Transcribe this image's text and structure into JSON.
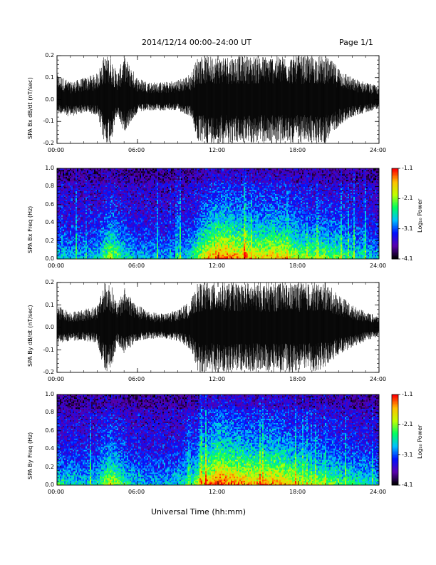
{
  "header": {
    "title": "2014/12/14   00:00–24:00 UT",
    "page": "Page 1/1"
  },
  "xlabel": "Universal Time (hh:mm)",
  "chart_data": [
    {
      "type": "line",
      "ylabel": "SPA Bx dB/dt (nT/sec)",
      "ylim": [
        -0.2,
        0.2
      ],
      "yticks": [
        "-0.2",
        "-0.1",
        "0.0",
        "0.1",
        "0.2"
      ],
      "xticks": [
        "00:00",
        "06:00",
        "12:00",
        "18:00",
        "24:00"
      ],
      "xlim": [
        0,
        24
      ],
      "series": [
        {
          "x": [
            0,
            1,
            2,
            3,
            3.5,
            4,
            4.5,
            5,
            6,
            7,
            8,
            9,
            10,
            10.5,
            11,
            12,
            13,
            14,
            15,
            16,
            17,
            18,
            19,
            20,
            21,
            22,
            23,
            24
          ],
          "y_min": [
            -0.06,
            -0.08,
            -0.06,
            -0.07,
            -0.2,
            -0.2,
            -0.07,
            -0.15,
            -0.06,
            -0.05,
            -0.05,
            -0.05,
            -0.08,
            -0.2,
            -0.2,
            -0.2,
            -0.2,
            -0.2,
            -0.2,
            -0.2,
            -0.2,
            -0.2,
            -0.2,
            -0.2,
            -0.12,
            -0.08,
            -0.06,
            -0.04
          ],
          "y_max": [
            0.12,
            0.08,
            0.1,
            0.12,
            0.2,
            0.2,
            0.12,
            0.2,
            0.1,
            0.08,
            0.08,
            0.09,
            0.12,
            0.2,
            0.2,
            0.2,
            0.2,
            0.2,
            0.2,
            0.2,
            0.2,
            0.2,
            0.2,
            0.2,
            0.15,
            0.1,
            0.08,
            0.06
          ]
        }
      ]
    },
    {
      "type": "heatmap",
      "ylabel": "SPA Bx Freq (Hz)",
      "ylim": [
        0.0,
        1.0
      ],
      "yticks": [
        "0.0",
        "0.2",
        "0.4",
        "0.6",
        "0.8",
        "1.0"
      ],
      "xticks": [
        "00:00",
        "06:00",
        "12:00",
        "18:00",
        "24:00"
      ],
      "xlim": [
        0,
        24
      ],
      "colorbar": {
        "label": "Log₁₀ Power",
        "ticks": [
          "-4.1",
          "-3.1",
          "-2.1",
          "-1.1"
        ],
        "range": [
          -4.1,
          -1.1
        ],
        "colors": [
          "#000000",
          "#5a00b0",
          "#0010ff",
          "#00c0ff",
          "#00ff60",
          "#c0ff00",
          "#ffc000",
          "#ff0000"
        ]
      },
      "activity_profile": {
        "x": [
          0,
          1,
          2,
          3,
          4,
          5,
          6,
          7,
          8,
          9,
          10,
          11,
          12,
          13,
          14,
          15,
          16,
          17,
          18,
          19,
          20,
          21,
          22,
          23,
          24
        ],
        "level": [
          0.35,
          0.3,
          0.3,
          0.35,
          0.6,
          0.4,
          0.3,
          0.3,
          0.25,
          0.3,
          0.4,
          0.7,
          0.85,
          0.8,
          0.75,
          0.7,
          0.75,
          0.7,
          0.6,
          0.55,
          0.55,
          0.5,
          0.4,
          0.35,
          0.3
        ]
      }
    },
    {
      "type": "line",
      "ylabel": "SPA By dB/dt (nT/sec)",
      "ylim": [
        -0.2,
        0.2
      ],
      "yticks": [
        "-0.2",
        "-0.1",
        "0.0",
        "0.1",
        "0.2"
      ],
      "xticks": [
        "00:00",
        "06:00",
        "12:00",
        "18:00",
        "24:00"
      ],
      "xlim": [
        0,
        24
      ],
      "series": [
        {
          "x": [
            0,
            1,
            2,
            3,
            3.5,
            4,
            4.5,
            5,
            6,
            7,
            8,
            9,
            10,
            10.5,
            11,
            12,
            13,
            14,
            15,
            16,
            17,
            18,
            19,
            20,
            21,
            22,
            23,
            24
          ],
          "y_min": [
            -0.08,
            -0.06,
            -0.06,
            -0.07,
            -0.2,
            -0.2,
            -0.07,
            -0.12,
            -0.06,
            -0.05,
            -0.05,
            -0.06,
            -0.1,
            -0.2,
            -0.2,
            -0.2,
            -0.2,
            -0.2,
            -0.2,
            -0.2,
            -0.2,
            -0.2,
            -0.2,
            -0.18,
            -0.12,
            -0.09,
            -0.06,
            -0.04
          ],
          "y_max": [
            0.1,
            0.07,
            0.08,
            0.1,
            0.2,
            0.2,
            0.1,
            0.18,
            0.1,
            0.07,
            0.06,
            0.08,
            0.12,
            0.2,
            0.2,
            0.2,
            0.2,
            0.2,
            0.2,
            0.2,
            0.2,
            0.2,
            0.2,
            0.2,
            0.15,
            0.1,
            0.07,
            0.05
          ]
        }
      ]
    },
    {
      "type": "heatmap",
      "ylabel": "SPA By Freq (Hz)",
      "ylim": [
        0.0,
        1.0
      ],
      "yticks": [
        "0.0",
        "0.2",
        "0.4",
        "0.6",
        "0.8",
        "1.0"
      ],
      "xticks": [
        "00:00",
        "06:00",
        "12:00",
        "18:00",
        "24:00"
      ],
      "xlim": [
        0,
        24
      ],
      "colorbar": {
        "label": "Log₁₀ Power",
        "ticks": [
          "-4.1",
          "-3.1",
          "-2.1",
          "-1.1"
        ],
        "range": [
          -4.1,
          -1.1
        ],
        "colors": [
          "#000000",
          "#5a00b0",
          "#0010ff",
          "#00c0ff",
          "#00ff60",
          "#c0ff00",
          "#ffc000",
          "#ff0000"
        ]
      },
      "activity_profile": {
        "x": [
          0,
          1,
          2,
          3,
          4,
          5,
          6,
          7,
          8,
          9,
          10,
          11,
          12,
          13,
          14,
          15,
          16,
          17,
          18,
          19,
          20,
          21,
          22,
          23,
          24
        ],
        "level": [
          0.4,
          0.35,
          0.35,
          0.4,
          0.65,
          0.45,
          0.3,
          0.3,
          0.3,
          0.35,
          0.45,
          0.75,
          0.9,
          0.85,
          0.8,
          0.75,
          0.8,
          0.75,
          0.65,
          0.6,
          0.55,
          0.5,
          0.45,
          0.4,
          0.35
        ]
      }
    }
  ]
}
